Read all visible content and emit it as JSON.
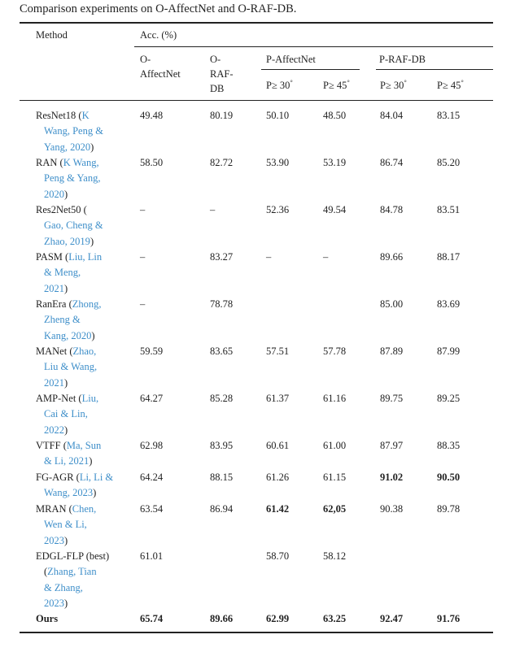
{
  "caption": "Comparison experiments on O-AffectNet and O-RAF-DB.",
  "header": {
    "method": "Method",
    "acc": "Acc. (%)",
    "o_affectnet": [
      "O-",
      "AffectNet"
    ],
    "o_rafdb": [
      "O-",
      "RAF-",
      "DB"
    ],
    "p_affectnet": "P-AffectNet",
    "p_rafdb": "P-RAF-DB",
    "p30": "P≥ 30",
    "p45": "P≥ 45",
    "deg": "°"
  },
  "rows": [
    {
      "name": "ResNet18 (",
      "cite": [
        "K",
        "Wang, Peng &",
        "Yang, 2020)"
      ],
      "v": [
        "49.48",
        "80.19",
        "50.10",
        "48.50",
        "84.04",
        "83.15"
      ],
      "b": []
    },
    {
      "name": "RAN (",
      "cite": [
        "K Wang,",
        "Peng & Yang,",
        "2020)"
      ],
      "v": [
        "58.50",
        "82.72",
        "53.90",
        "53.19",
        "86.74",
        "85.20"
      ],
      "b": []
    },
    {
      "name": "Res2Net50 (",
      "cite": [
        "",
        "Gao, Cheng &",
        "Zhao, 2019)"
      ],
      "v": [
        "–",
        "–",
        "52.36",
        "49.54",
        "84.78",
        "83.51"
      ],
      "b": []
    },
    {
      "name": "PASM (",
      "cite": [
        "Liu, Lin",
        "& Meng,",
        "2021)"
      ],
      "v": [
        "–",
        "83.27",
        "–",
        "–",
        "89.66",
        "88.17"
      ],
      "b": []
    },
    {
      "name": "RanEra (",
      "cite": [
        "Zhong,",
        "Zheng &",
        "Kang, 2020)"
      ],
      "v": [
        "–",
        "78.78",
        "",
        "",
        "85.00",
        "83.69"
      ],
      "b": []
    },
    {
      "name": "MANet (",
      "cite": [
        "Zhao,",
        "Liu & Wang,",
        "2021)"
      ],
      "v": [
        "59.59",
        "83.65",
        "57.51",
        "57.78",
        "87.89",
        "87.99"
      ],
      "b": []
    },
    {
      "name": "AMP-Net (",
      "cite": [
        "Liu,",
        "Cai & Lin,",
        "2022)"
      ],
      "v": [
        "64.27",
        "85.28",
        "61.37",
        "61.16",
        "89.75",
        "89.25"
      ],
      "b": []
    },
    {
      "name": "VTFF (",
      "cite": [
        "Ma, Sun",
        "& Li, 2021)"
      ],
      "v": [
        "62.98",
        "83.95",
        "60.61",
        "61.00",
        "87.97",
        "88.35"
      ],
      "b": []
    },
    {
      "name": "FG-AGR (",
      "cite": [
        "Li, Li &",
        "Wang, 2023)"
      ],
      "v": [
        "64.24",
        "88.15",
        "61.26",
        "61.15",
        "91.02",
        "90.50"
      ],
      "b": [
        4,
        5
      ]
    },
    {
      "name": "MRAN (",
      "cite": [
        "Chen,",
        "Wen & Li,",
        "2023)"
      ],
      "v": [
        "63.54",
        "86.94",
        "61.42",
        "62,05",
        "90.38",
        "89.78"
      ],
      "b": [
        2,
        3
      ]
    },
    {
      "name": "EDGL-FLP (best)",
      "cite": [
        "",
        "(Zhang, Tian",
        "& Zhang,",
        "2023)"
      ],
      "v": [
        "61.01",
        "",
        "58.70",
        "58.12",
        "",
        ""
      ],
      "b": []
    },
    {
      "name": "Ours",
      "cite": [],
      "v": [
        "65.74",
        "89.66",
        "62.99",
        "63.25",
        "92.47",
        "91.76"
      ],
      "b": [
        0,
        1,
        2,
        3,
        4,
        5
      ]
    }
  ]
}
